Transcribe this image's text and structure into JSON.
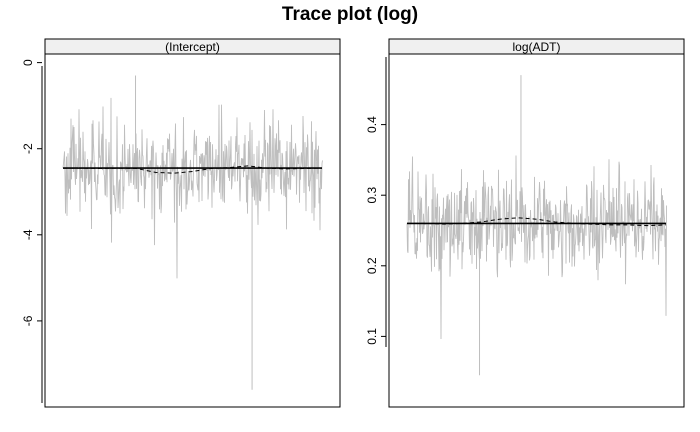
{
  "title": "Trace plot (log)",
  "colors": {
    "trace": "#bebebe",
    "mean": "#000000",
    "running": "#000000",
    "strip_bg": "#f0f0f0",
    "frame": "#000000"
  },
  "chart_data": [
    {
      "type": "line",
      "panel": "(Intercept)",
      "ylim": [
        -8.0,
        0.2
      ],
      "yticks": [
        0,
        -2,
        -4,
        -6
      ],
      "ytick_labels": [
        "0",
        "-2",
        "-4",
        "-6"
      ],
      "x_iterations": [
        1,
        2000
      ],
      "posterior_mean": -2.45,
      "typical_band": [
        -3.4,
        -1.6
      ],
      "extremes": {
        "min": -7.6,
        "max": -0.3
      },
      "running_mean": [
        -2.45,
        -2.45,
        -2.46,
        -2.45,
        -2.46,
        -2.55,
        -2.57,
        -2.53,
        -2.46,
        -2.44,
        -2.4,
        -2.45,
        -2.47,
        -2.46,
        -2.45
      ],
      "grid": false
    },
    {
      "type": "line",
      "panel": "log(ADT)",
      "ylim": [
        0.0,
        0.5
      ],
      "yticks": [
        0.1,
        0.2,
        0.3,
        0.4
      ],
      "ytick_labels": [
        "0.1",
        "0.2",
        "0.3",
        "0.4"
      ],
      "x_iterations": [
        1,
        2000
      ],
      "posterior_mean": 0.26,
      "typical_band": [
        0.2,
        0.32
      ],
      "extremes": {
        "min": 0.045,
        "max": 0.47
      },
      "running_mean": [
        0.26,
        0.26,
        0.259,
        0.26,
        0.262,
        0.266,
        0.268,
        0.266,
        0.262,
        0.26,
        0.259,
        0.258,
        0.258,
        0.257,
        0.258
      ],
      "grid": false
    }
  ]
}
